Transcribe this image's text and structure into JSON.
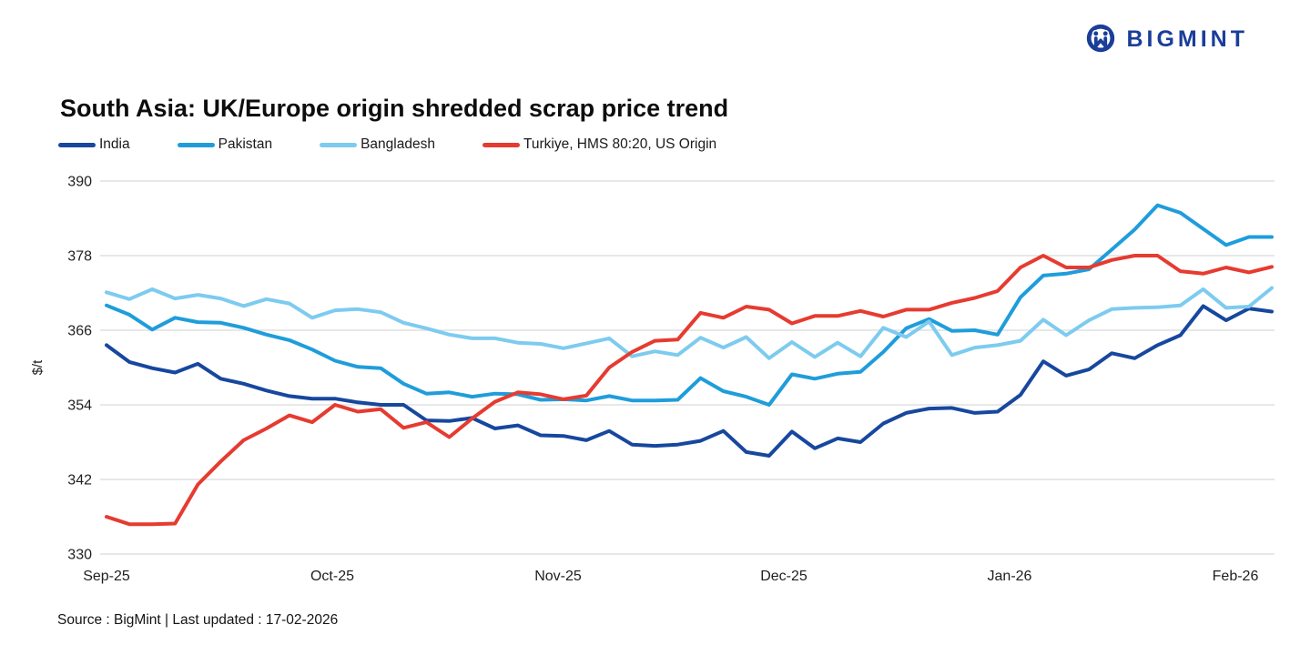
{
  "logo": {
    "text": "BIGMINT",
    "color": "#1a3e99",
    "icon": "bigmint-people-icon"
  },
  "title": "South Asia: UK/Europe origin shredded scrap price trend",
  "footer": {
    "text": "Source : BigMint | Last updated : 17-02-2026"
  },
  "chart_data": {
    "type": "line",
    "title": "South Asia: UK/Europe origin shredded scrap price trend",
    "xlabel": "",
    "ylabel": "$/t",
    "ylim": [
      330,
      390
    ],
    "yticks": [
      390,
      378,
      366,
      354,
      342,
      330
    ],
    "xticklabels": [
      "Sep-25",
      "Oct-25",
      "Nov-25",
      "Dec-25",
      "Jan-26",
      "Feb-26"
    ],
    "grid": "horizontal",
    "legend_position": "top-left",
    "grid_color": "#d9d9d9",
    "axis_text_color": "#1f1f1f",
    "series": [
      {
        "name": "India",
        "key": "india",
        "color": "#17479E",
        "values": [
          363.6,
          360.9,
          359.9,
          359.2,
          360.6,
          358.2,
          357.4,
          356.3,
          355.4,
          355.0,
          355.0,
          354.4,
          354.0,
          354.0,
          351.5,
          351.4,
          351.9,
          350.2,
          350.7,
          349.1,
          349.0,
          348.3,
          349.8,
          347.6,
          347.4,
          347.6,
          348.2,
          349.8,
          346.4,
          345.8,
          349.7,
          347.0,
          348.6,
          348.0,
          351.0,
          352.7,
          353.4,
          353.5,
          352.7,
          352.9,
          355.6,
          361.0,
          358.7,
          359.7,
          362.3,
          361.5,
          363.6,
          365.2,
          369.9,
          367.6,
          369.5,
          369.0
        ]
      },
      {
        "name": "Pakistan",
        "key": "pakistan",
        "color": "#1F9DDB",
        "values": [
          370.0,
          368.5,
          366.1,
          368.0,
          367.3,
          367.2,
          366.4,
          365.3,
          364.4,
          362.9,
          361.1,
          360.1,
          359.9,
          357.4,
          355.8,
          356.0,
          355.3,
          355.8,
          355.7,
          354.8,
          354.9,
          354.7,
          355.4,
          354.7,
          354.7,
          354.8,
          358.3,
          356.2,
          355.3,
          354.0,
          358.9,
          358.2,
          359.0,
          359.3,
          362.5,
          366.3,
          367.8,
          365.9,
          366.0,
          365.3,
          371.3,
          374.8,
          375.1,
          375.8,
          379.0,
          382.2,
          386.1,
          384.9,
          382.3,
          379.7,
          381.0,
          381.0
        ]
      },
      {
        "name": "Bangladesh",
        "key": "bangladesh",
        "color": "#7DCBEF",
        "values": [
          372.1,
          371.0,
          372.6,
          371.1,
          371.7,
          371.1,
          369.9,
          371.0,
          370.3,
          368.0,
          369.2,
          369.4,
          368.9,
          367.2,
          366.3,
          365.3,
          364.7,
          364.7,
          364.0,
          363.8,
          363.1,
          363.9,
          364.7,
          361.8,
          362.6,
          362.0,
          364.8,
          363.2,
          364.9,
          361.5,
          364.1,
          361.7,
          364.0,
          361.8,
          366.4,
          364.9,
          367.4,
          362.0,
          363.2,
          363.6,
          364.3,
          367.7,
          365.2,
          367.6,
          369.4,
          369.6,
          369.7,
          370.0,
          372.6,
          369.6,
          369.8,
          372.8
        ]
      },
      {
        "name": "Turkiye, HMS 80:20, US Origin",
        "key": "turkiye",
        "color": "#E63B30",
        "values": [
          336.0,
          334.8,
          334.8,
          334.9,
          341.2,
          344.9,
          348.3,
          350.2,
          352.3,
          351.2,
          354.0,
          352.9,
          353.3,
          350.3,
          351.2,
          348.8,
          351.8,
          354.5,
          356.0,
          355.7,
          354.9,
          355.5,
          360.0,
          362.5,
          364.3,
          364.5,
          368.8,
          368.0,
          369.8,
          369.3,
          367.1,
          368.3,
          368.3,
          369.1,
          368.2,
          369.3,
          369.3,
          370.4,
          371.2,
          372.3,
          376.1,
          378.0,
          376.1,
          376.1,
          377.3,
          378.0,
          378.0,
          375.5,
          375.1,
          376.1,
          375.3,
          376.2
        ]
      }
    ]
  }
}
